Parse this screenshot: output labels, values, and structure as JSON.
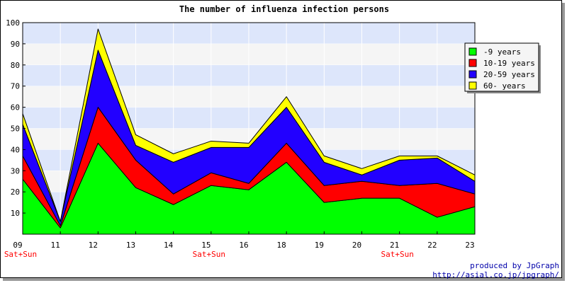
{
  "chart_data": {
    "type": "area",
    "stacked": true,
    "title": "The number of influenza infection persons",
    "categories": [
      "09",
      "11",
      "12",
      "13",
      "14",
      "15",
      "16",
      "18",
      "19",
      "20",
      "21",
      "22",
      "23"
    ],
    "weekend_markers": [
      "Sat+Sun",
      "",
      "",
      "",
      "",
      "Sat+Sun",
      "",
      "",
      "",
      "",
      "Sat+Sun",
      "",
      ""
    ],
    "ylim": [
      0,
      100
    ],
    "yticks": [
      10,
      20,
      30,
      40,
      50,
      60,
      70,
      80,
      90,
      100
    ],
    "grid": true,
    "legend_position": "right",
    "series": [
      {
        "name": "-9 years",
        "color": "#00ff00",
        "values": [
          26,
          3,
          43,
          22,
          14,
          23,
          21,
          34,
          15,
          17,
          17,
          8,
          13
        ]
      },
      {
        "name": "10-19 years",
        "color": "#ff0000",
        "values": [
          11,
          1,
          17,
          13,
          5,
          6,
          3,
          9,
          8,
          8,
          6,
          16,
          6
        ]
      },
      {
        "name": "20-59 years",
        "color": "#2200ff",
        "values": [
          15,
          2,
          27,
          7,
          15,
          12,
          17,
          17,
          11,
          3,
          12,
          12,
          6
        ]
      },
      {
        "name": "60- years",
        "color": "#ffff00",
        "values": [
          5,
          0,
          10,
          5,
          4,
          3,
          2,
          5,
          3,
          3,
          2,
          1,
          3
        ]
      }
    ]
  },
  "credits": {
    "line1": "produced by JpGraph",
    "line2": "http://asial.co.jp/jpgraph/"
  }
}
